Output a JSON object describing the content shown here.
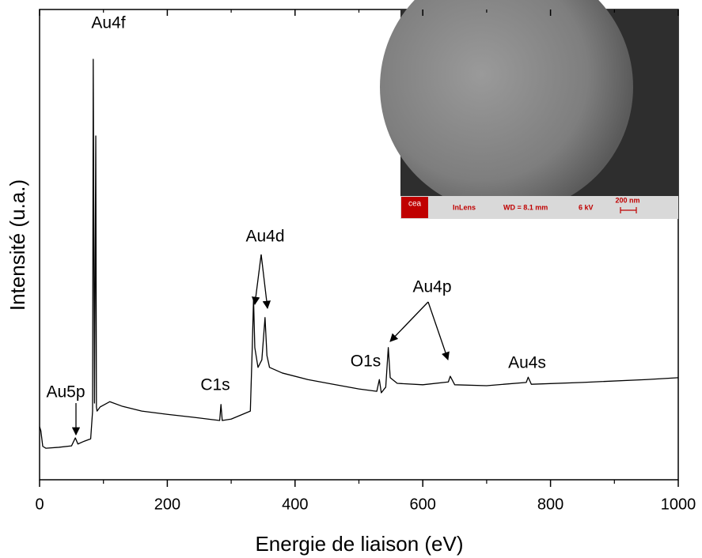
{
  "chart_data": {
    "type": "line",
    "xlabel": "Energie de liaison (eV)",
    "ylabel": "Intensité (u.a.)",
    "x": [
      0,
      2,
      5,
      10,
      30,
      50,
      56,
      60,
      70,
      80,
      83,
      84,
      85,
      86,
      88,
      89,
      90,
      95,
      110,
      130,
      160,
      200,
      240,
      270,
      282,
      284,
      286,
      300,
      330,
      333,
      335,
      337,
      342,
      348,
      353,
      356,
      360,
      380,
      420,
      460,
      500,
      528,
      532,
      535,
      542,
      546,
      549,
      560,
      600,
      640,
      643,
      650,
      700,
      762,
      765,
      770,
      850,
      950,
      1000
    ],
    "values": [
      11.3,
      10.4,
      7.1,
      6.7,
      6.9,
      7.2,
      8.9,
      7.6,
      8.2,
      8.7,
      14.6,
      89.4,
      51.6,
      16.3,
      73.1,
      15.5,
      14.6,
      15.5,
      16.6,
      15.6,
      14.6,
      13.9,
      13.3,
      12.8,
      12.6,
      16.0,
      12.6,
      12.9,
      14.6,
      28.1,
      38.5,
      28.1,
      23.9,
      25.5,
      34.5,
      26.4,
      23.9,
      22.7,
      21.3,
      20.3,
      19.3,
      18.8,
      21.3,
      18.5,
      19.7,
      28.1,
      21.7,
      20.5,
      20.2,
      20.8,
      22.0,
      20.2,
      20.0,
      20.7,
      21.8,
      20.3,
      20.7,
      21.3,
      21.7
    ],
    "color": "#000000",
    "xlim": [
      0,
      1000
    ],
    "xticks": [
      0,
      200,
      400,
      600,
      800,
      1000
    ],
    "xminor_ticks": [
      100,
      300,
      500,
      700,
      900
    ],
    "ylim": [
      0,
      100
    ],
    "annotations": [
      {
        "text": "Au4f"
      },
      {
        "text": "Au5p"
      },
      {
        "text": "C1s"
      },
      {
        "text": "Au4d"
      },
      {
        "text": "O1s"
      },
      {
        "text": "Au4p"
      },
      {
        "text": "Au4s"
      }
    ],
    "inset": {
      "logo": "cea",
      "detector": "InLens",
      "working_distance": "WD = 8.1 mm",
      "voltage": "6 kV",
      "scale_bar": "200 nm"
    }
  }
}
